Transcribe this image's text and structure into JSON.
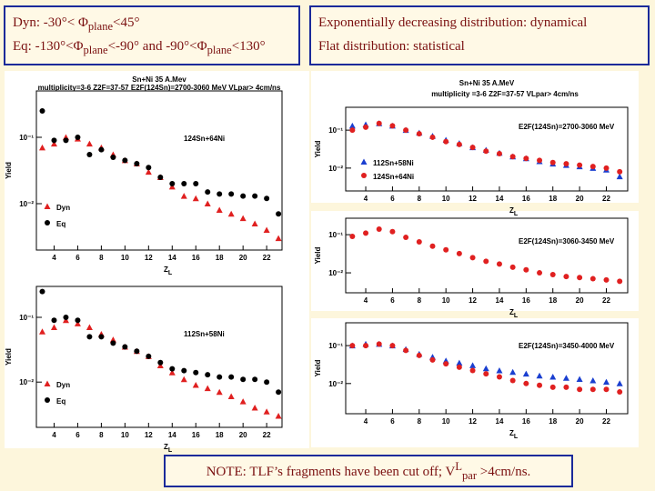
{
  "header": {
    "left_lines": [
      [
        "Dyn:  -30°< Φ",
        {
          "text": "plane",
          "style": "sub"
        },
        "<45°"
      ],
      [
        "Eq:  -130°<Φ",
        {
          "text": "plane",
          "style": "sub"
        },
        "<-90° and -90°<Φ",
        {
          "text": "plane",
          "style": "sub"
        },
        "<130°"
      ]
    ],
    "right_lines": [
      [
        "Exponentially decreasing distribution: dynamical"
      ],
      [
        "Flat distribution: statistical"
      ]
    ]
  },
  "note": [
    "NOTE: TLF’s fragments have been cut off; V",
    {
      "text": "L",
      "style": "sup"
    },
    {
      "text": "par",
      "style": "sub"
    },
    " >4cm/ns."
  ],
  "chart_data": [
    {
      "type": "scatter",
      "title": "Sn+Ni 35 A.Mev",
      "subtitle": "multiplicity=3-6  Z2F=37-57  E2F(124Sn)=2700-3060 MeV  VLpar> 4cm/ns",
      "annotation": "124Sn+64Ni",
      "xlabel": "Z",
      "xlabel_sub": "L",
      "ylabel": "Yield",
      "log_y": true,
      "legend": "lower left",
      "xlim": [
        2.5,
        23.3
      ],
      "xticks": [
        4,
        6,
        8,
        10,
        12,
        14,
        16,
        18,
        20,
        22
      ],
      "ylim": [
        0.002,
        0.5
      ],
      "yticks": [
        {
          "value": 0.1,
          "label": "10⁻¹"
        },
        {
          "value": 0.01,
          "label": "10⁻²"
        }
      ],
      "x": [
        3,
        4,
        5,
        6,
        7,
        8,
        9,
        10,
        11,
        12,
        13,
        14,
        15,
        16,
        17,
        18,
        19,
        20,
        21,
        22,
        23
      ],
      "series": [
        {
          "name": "Dyn",
          "color": "#e02020",
          "marker": "triangle",
          "values": [
            0.07,
            0.08,
            0.1,
            0.095,
            0.08,
            0.07,
            0.055,
            0.045,
            0.04,
            0.03,
            0.025,
            0.018,
            0.013,
            0.012,
            0.01,
            0.008,
            0.007,
            0.006,
            0.005,
            0.004,
            0.003
          ]
        },
        {
          "name": "Eq",
          "color": "#000000",
          "marker": "circle",
          "values": [
            0.25,
            0.09,
            0.09,
            0.1,
            0.055,
            0.065,
            0.05,
            0.045,
            0.04,
            0.035,
            0.025,
            0.02,
            0.02,
            0.02,
            0.015,
            0.014,
            0.014,
            0.013,
            0.013,
            0.012,
            0.007
          ]
        }
      ]
    },
    {
      "type": "scatter",
      "annotation": "112Sn+58Ni",
      "xlabel": "Z",
      "xlabel_sub": "L",
      "ylabel": "Yield",
      "log_y": true,
      "legend": "lower left",
      "xlim": [
        2.5,
        23.3
      ],
      "xticks": [
        4,
        6,
        8,
        10,
        12,
        14,
        16,
        18,
        20,
        22
      ],
      "ylim": [
        0.002,
        0.3
      ],
      "yticks": [
        {
          "value": 0.1,
          "label": "10⁻¹"
        },
        {
          "value": 0.01,
          "label": "10⁻²"
        }
      ],
      "x": [
        3,
        4,
        5,
        6,
        7,
        8,
        9,
        10,
        11,
        12,
        13,
        14,
        15,
        16,
        17,
        18,
        19,
        20,
        21,
        22,
        23
      ],
      "series": [
        {
          "name": "Dyn",
          "color": "#e02020",
          "marker": "triangle",
          "values": [
            0.06,
            0.07,
            0.09,
            0.08,
            0.07,
            0.055,
            0.045,
            0.035,
            0.03,
            0.025,
            0.018,
            0.014,
            0.011,
            0.009,
            0.008,
            0.007,
            0.006,
            0.005,
            0.004,
            0.0035,
            0.003
          ]
        },
        {
          "name": "Eq",
          "color": "#000000",
          "marker": "circle",
          "values": [
            0.25,
            0.09,
            0.1,
            0.09,
            0.05,
            0.05,
            0.04,
            0.035,
            0.03,
            0.025,
            0.02,
            0.016,
            0.015,
            0.014,
            0.013,
            0.012,
            0.012,
            0.011,
            0.011,
            0.01,
            0.007
          ]
        }
      ]
    },
    {
      "type": "scatter",
      "title": "Sn+Ni 35 A.MeV",
      "subtitle": "multiplicity =3-6  Z2F=37-57 VLpar> 4cm/ns",
      "annotation": "E2F(124Sn)=2700-3060 MeV",
      "xlabel": "Z",
      "xlabel_sub": "L",
      "ylabel": "Yield",
      "log_y": true,
      "legend": "lower left",
      "xlim": [
        2.5,
        23.6
      ],
      "xticks": [
        4,
        6,
        8,
        10,
        12,
        14,
        16,
        18,
        20,
        22
      ],
      "ylim": [
        0.0025,
        0.4
      ],
      "yticks": [
        {
          "value": 0.1,
          "label": "10⁻¹"
        },
        {
          "value": 0.01,
          "label": "10⁻²"
        }
      ],
      "x": [
        3,
        4,
        5,
        6,
        7,
        8,
        9,
        10,
        11,
        12,
        13,
        14,
        15,
        16,
        17,
        18,
        19,
        20,
        21,
        22,
        23
      ],
      "series": [
        {
          "name": "112Sn+58Ni",
          "color": "#1a3fd0",
          "marker": "triangle",
          "values": [
            0.13,
            0.14,
            0.15,
            0.13,
            0.1,
            0.085,
            0.07,
            0.055,
            0.045,
            0.035,
            0.03,
            0.025,
            0.02,
            0.018,
            0.015,
            0.013,
            0.012,
            0.011,
            0.01,
            0.009,
            0.006
          ]
        },
        {
          "name": "124Sn+64Ni",
          "color": "#e02020",
          "marker": "circle",
          "values": [
            0.1,
            0.12,
            0.15,
            0.13,
            0.1,
            0.08,
            0.065,
            0.05,
            0.042,
            0.035,
            0.028,
            0.024,
            0.02,
            0.018,
            0.016,
            0.014,
            0.013,
            0.012,
            0.011,
            0.01,
            0.008
          ]
        }
      ]
    },
    {
      "type": "scatter",
      "annotation": "E2F(124Sn)=3060-3450 MeV",
      "xlabel": "Z",
      "xlabel_sub": "L",
      "ylabel": "Yield",
      "log_y": true,
      "xlim": [
        2.5,
        23.6
      ],
      "xticks": [
        4,
        6,
        8,
        10,
        12,
        14,
        16,
        18,
        20,
        22
      ],
      "ylim": [
        0.003,
        0.27
      ],
      "yticks": [
        {
          "value": 0.1,
          "label": "10⁻¹"
        },
        {
          "value": 0.01,
          "label": "10⁻²"
        }
      ],
      "x": [
        3,
        4,
        5,
        6,
        7,
        8,
        9,
        10,
        11,
        12,
        13,
        14,
        15,
        16,
        17,
        18,
        19,
        20,
        21,
        22,
        23
      ],
      "series": [
        {
          "color": "#e02020",
          "marker": "circle",
          "values": [
            0.09,
            0.11,
            0.14,
            0.12,
            0.085,
            0.065,
            0.05,
            0.04,
            0.032,
            0.025,
            0.02,
            0.017,
            0.014,
            0.012,
            0.01,
            0.009,
            0.008,
            0.0075,
            0.007,
            0.0065,
            0.006
          ]
        }
      ]
    },
    {
      "type": "scatter",
      "annotation": "E2F(124Sn)=3450-4000 MeV",
      "xlabel": "Z",
      "xlabel_sub": "L",
      "ylabel": "Yield",
      "log_y": true,
      "xlim": [
        2.5,
        23.6
      ],
      "xticks": [
        4,
        6,
        8,
        10,
        12,
        14,
        16,
        18,
        20,
        22
      ],
      "ylim": [
        0.0016,
        0.4
      ],
      "yticks": [
        {
          "value": 0.1,
          "label": "10⁻¹"
        },
        {
          "value": 0.01,
          "label": "10⁻²"
        }
      ],
      "x": [
        3,
        4,
        5,
        6,
        7,
        8,
        9,
        10,
        11,
        12,
        13,
        14,
        15,
        16,
        17,
        18,
        19,
        20,
        21,
        22,
        23
      ],
      "series": [
        {
          "color": "#1a3fd0",
          "marker": "triangle",
          "values": [
            0.1,
            0.11,
            0.11,
            0.1,
            0.08,
            0.06,
            0.05,
            0.04,
            0.035,
            0.03,
            0.025,
            0.022,
            0.02,
            0.018,
            0.016,
            0.015,
            0.014,
            0.013,
            0.012,
            0.011,
            0.01
          ]
        },
        {
          "color": "#e02020",
          "marker": "circle",
          "values": [
            0.1,
            0.1,
            0.11,
            0.1,
            0.075,
            0.055,
            0.042,
            0.033,
            0.027,
            0.022,
            0.018,
            0.015,
            0.012,
            0.01,
            0.009,
            0.008,
            0.008,
            0.007,
            0.007,
            0.007,
            0.006
          ]
        }
      ]
    }
  ]
}
